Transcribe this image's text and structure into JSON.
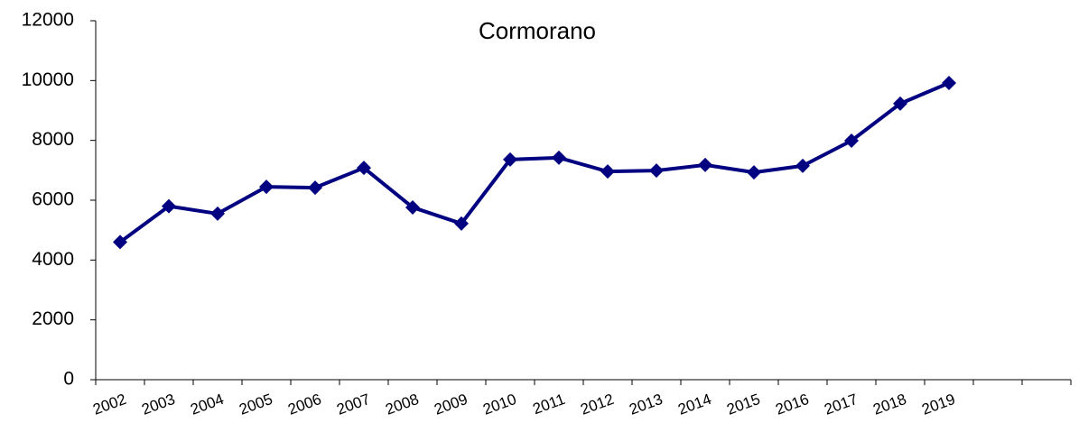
{
  "chart_data": {
    "type": "line",
    "title": "Cormorano",
    "categories": [
      "2002",
      "2003",
      "2004",
      "2005",
      "2006",
      "2007",
      "2008",
      "2009",
      "2010",
      "2011",
      "2012",
      "2013",
      "2014",
      "2015",
      "2016",
      "2017",
      "2018",
      "2019",
      null,
      null
    ],
    "series": [
      {
        "name": "Cormorano",
        "color": "#000080",
        "values": [
          4600,
          5800,
          5550,
          6450,
          6420,
          7080,
          5760,
          5220,
          7360,
          7420,
          6960,
          6990,
          7180,
          6930,
          7150,
          7990,
          9230,
          9920,
          null,
          null
        ]
      }
    ],
    "ylim": [
      0,
      12000
    ],
    "yticks": [
      0,
      2000,
      4000,
      6000,
      8000,
      10000,
      12000
    ],
    "grid": false
  }
}
